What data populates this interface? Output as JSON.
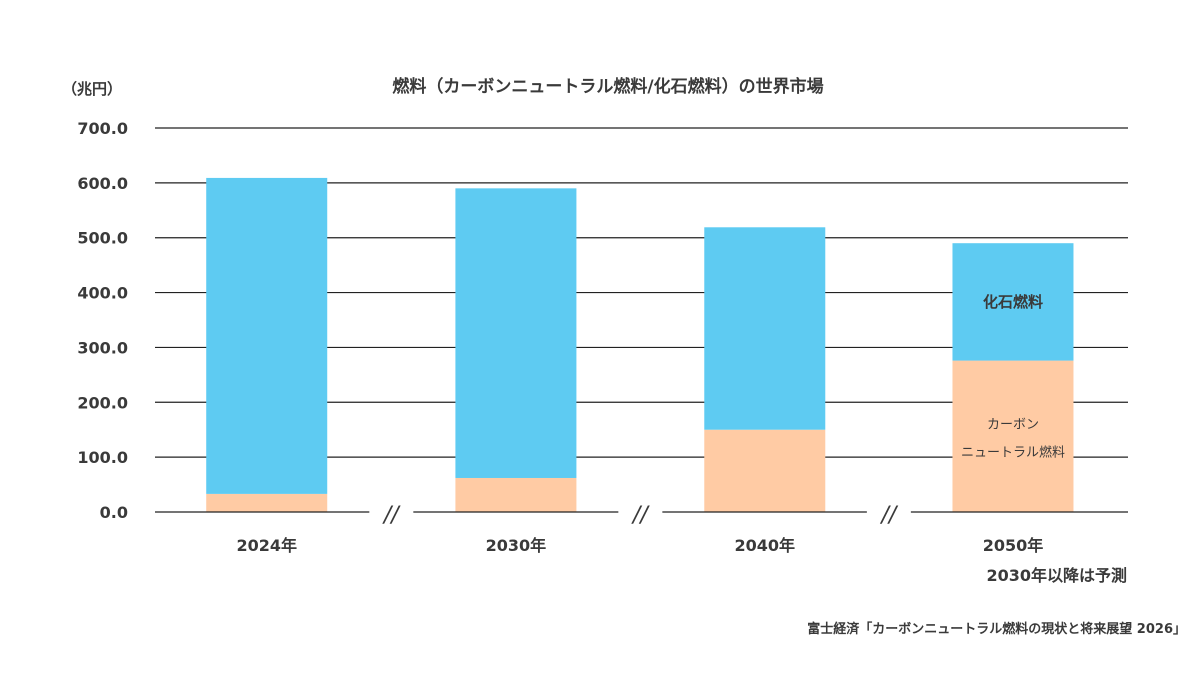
{
  "chart_data": {
    "type": "bar",
    "stacked": true,
    "title": "燃料（カーボンニュートラル燃料/化石燃料）の世界市場",
    "unit_label": "（兆円）",
    "categories": [
      "2024年",
      "2030年",
      "2040年",
      "2050年"
    ],
    "series": [
      {
        "name": "カーボンニュートラル燃料",
        "color": "#FFCBA4",
        "values": [
          33,
          62,
          150,
          276
        ]
      },
      {
        "name": "化石燃料",
        "color": "#5ECBF2",
        "values": [
          576,
          528,
          369,
          214
        ]
      }
    ],
    "segment_labels": {
      "fossil": "化石燃料",
      "carbon_line1": "カーボン",
      "carbon_line2": "ニュートラル燃料"
    },
    "ylim": [
      0,
      700
    ],
    "yticks": [
      "0.0",
      "100.0",
      "200.0",
      "300.0",
      "400.0",
      "500.0",
      "600.0",
      "700.0"
    ],
    "grid": true,
    "axis_break_mark": "//",
    "forecast_note": "2030年以降は予測",
    "source": "富士経済「カーボンニュートラル燃料の現状と将来展望 2026」"
  }
}
